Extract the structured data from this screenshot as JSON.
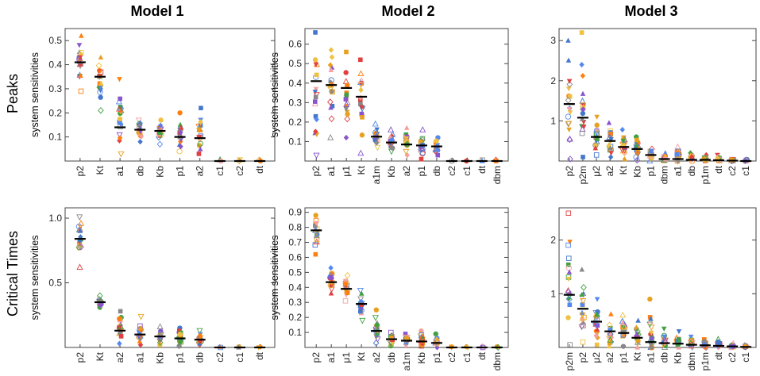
{
  "figure": {
    "column_titles": [
      "Model 1",
      "Model 2",
      "Model 3"
    ],
    "row_labels": [
      "Peaks",
      "Critical Times"
    ],
    "y_axis_label": "system sensitivities"
  },
  "chart_data": [
    {
      "type": "scatter",
      "id": "peaks-model-1",
      "title": "Model 1",
      "row": "Peaks",
      "ylabel": "system sensitivities",
      "ylim": [
        0,
        0.55
      ],
      "yticks": [
        0.1,
        0.2,
        0.3,
        0.4,
        0.5
      ],
      "yticklabels": [
        "0.1",
        "0.2",
        "0.3",
        "0.4",
        "0.5"
      ],
      "categories": [
        "p2",
        "Kt",
        "a1",
        "db",
        "Kb",
        "p1",
        "a2",
        "c1",
        "c2",
        "dt"
      ],
      "medians": [
        0.41,
        0.35,
        0.14,
        0.13,
        0.125,
        0.1,
        0.095,
        0.0,
        0.0,
        0.0
      ],
      "ranges": [
        [
          0.29,
          0.52
        ],
        [
          0.21,
          0.43
        ],
        [
          0.03,
          0.34
        ],
        [
          0.08,
          0.17
        ],
        [
          0.07,
          0.17
        ],
        [
          0.04,
          0.2
        ],
        [
          0.03,
          0.22
        ],
        [
          0.0,
          0.005
        ],
        [
          0.0,
          0.005
        ],
        [
          0.0,
          0.005
        ]
      ]
    },
    {
      "type": "scatter",
      "id": "peaks-model-2",
      "title": "Model 2",
      "row": "Peaks",
      "ylabel": "system sensitivities",
      "ylim": [
        0,
        0.68
      ],
      "yticks": [
        0.1,
        0.2,
        0.3,
        0.4,
        0.5,
        0.6
      ],
      "yticklabels": [
        "0.1",
        "0.2",
        "0.3",
        "0.4",
        "0.5",
        "0.6"
      ],
      "categories": [
        "p2",
        "a1",
        "μ1",
        "Kt",
        "a1m",
        "Kb",
        "a2",
        "p1",
        "db",
        "c2",
        "c1",
        "dt",
        "dbm"
      ],
      "medians": [
        0.41,
        0.39,
        0.375,
        0.33,
        0.125,
        0.095,
        0.085,
        0.08,
        0.075,
        0.0,
        0.0,
        0.0,
        0.0
      ],
      "ranges": [
        [
          0.03,
          0.66
        ],
        [
          0.12,
          0.57
        ],
        [
          0.12,
          0.56
        ],
        [
          0.04,
          0.52
        ],
        [
          0.07,
          0.19
        ],
        [
          0.05,
          0.16
        ],
        [
          0.03,
          0.17
        ],
        [
          0.01,
          0.16
        ],
        [
          0.03,
          0.12
        ],
        [
          0.0,
          0.005
        ],
        [
          0.0,
          0.005
        ],
        [
          0.0,
          0.005
        ],
        [
          0.0,
          0.005
        ]
      ]
    },
    {
      "type": "scatter",
      "id": "peaks-model-3",
      "title": "Model 3",
      "row": "Peaks",
      "ylabel": "",
      "ylim": [
        0,
        3.3
      ],
      "yticks": [
        1,
        2,
        3
      ],
      "yticklabels": [
        "1",
        "2",
        "3"
      ],
      "categories": [
        "p2",
        "p2m",
        "μ2",
        "a2",
        "Kt",
        "Kb",
        "p1",
        "dbm",
        "a1",
        "db",
        "p1m",
        "dt",
        "c2",
        "c1"
      ],
      "medians": [
        1.42,
        1.08,
        0.6,
        0.5,
        0.35,
        0.3,
        0.15,
        0.05,
        0.05,
        0.03,
        0.03,
        0.02,
        0.01,
        0.0
      ],
      "ranges": [
        [
          0.05,
          3.0
        ],
        [
          0.1,
          3.2
        ],
        [
          0.15,
          1.1
        ],
        [
          0.1,
          0.95
        ],
        [
          0.05,
          0.78
        ],
        [
          0.02,
          0.6
        ],
        [
          0.0,
          0.3
        ],
        [
          0.0,
          0.2
        ],
        [
          0.0,
          0.35
        ],
        [
          0.0,
          0.2
        ],
        [
          0.0,
          0.15
        ],
        [
          0.0,
          0.15
        ],
        [
          0.0,
          0.05
        ],
        [
          0.0,
          0.04
        ]
      ]
    },
    {
      "type": "scatter",
      "id": "critical-times-model-1",
      "title": "Model 1",
      "row": "Critical Times",
      "ylabel": "system sensitivities",
      "ylim": [
        0,
        1.08
      ],
      "yticks": [
        0.5,
        1.0
      ],
      "yticklabels": [
        "0.5",
        "1.0"
      ],
      "categories": [
        "p2",
        "Kt",
        "a2",
        "a1",
        "Kb",
        "p1",
        "db",
        "c2",
        "c1",
        "dt"
      ],
      "medians": [
        0.84,
        0.35,
        0.13,
        0.1,
        0.085,
        0.07,
        0.06,
        0.0,
        0.0,
        0.0
      ],
      "ranges": [
        [
          0.62,
          1.01
        ],
        [
          0.31,
          0.4
        ],
        [
          0.03,
          0.28
        ],
        [
          0.02,
          0.24
        ],
        [
          0.02,
          0.16
        ],
        [
          0.01,
          0.15
        ],
        [
          0.02,
          0.13
        ],
        [
          0.0,
          0.005
        ],
        [
          0.0,
          0.005
        ],
        [
          0.0,
          0.005
        ]
      ]
    },
    {
      "type": "scatter",
      "id": "critical-times-model-2",
      "title": "Model 2",
      "row": "Critical Times",
      "ylabel": "system sensitivities",
      "ylim": [
        0,
        0.93
      ],
      "yticks": [
        0.1,
        0.2,
        0.3,
        0.4,
        0.5,
        0.6,
        0.7,
        0.8,
        0.9
      ],
      "yticklabels": [
        "0.1",
        "0.2",
        "0.3",
        "0.4",
        "0.5",
        "0.6",
        "0.7",
        "0.8",
        "0.9"
      ],
      "categories": [
        "p2",
        "a1",
        "μ1",
        "Kt",
        "a2",
        "db",
        "a1m",
        "Kb",
        "p1",
        "c2",
        "c1",
        "dt",
        "dbm"
      ],
      "medians": [
        0.78,
        0.435,
        0.39,
        0.29,
        0.11,
        0.055,
        0.045,
        0.04,
        0.03,
        0.0,
        0.0,
        0.0,
        0.0
      ],
      "ranges": [
        [
          0.62,
          0.88
        ],
        [
          0.36,
          0.53
        ],
        [
          0.31,
          0.48
        ],
        [
          0.18,
          0.38
        ],
        [
          0.03,
          0.25
        ],
        [
          0.01,
          0.1
        ],
        [
          0.01,
          0.09
        ],
        [
          0.01,
          0.11
        ],
        [
          0.0,
          0.09
        ],
        [
          0.0,
          0.005
        ],
        [
          0.0,
          0.005
        ],
        [
          0.0,
          0.005
        ],
        [
          0.0,
          0.005
        ]
      ]
    },
    {
      "type": "scatter",
      "id": "critical-times-model-3",
      "title": "Model 3",
      "row": "Critical Times",
      "ylabel": "",
      "ylim": [
        0,
        2.6
      ],
      "yticks": [
        1,
        2
      ],
      "yticklabels": [
        "1",
        "2"
      ],
      "categories": [
        "p2m",
        "p2",
        "μ2",
        "a2",
        "p1",
        "Kt",
        "a1",
        "db",
        "Kb",
        "dbm",
        "p1m",
        "dt",
        "c2",
        "c1"
      ],
      "medians": [
        0.98,
        0.72,
        0.48,
        0.3,
        0.27,
        0.18,
        0.1,
        0.08,
        0.07,
        0.05,
        0.04,
        0.03,
        0.02,
        0.01
      ],
      "ranges": [
        [
          0.05,
          2.5
        ],
        [
          0.1,
          1.45
        ],
        [
          0.05,
          0.9
        ],
        [
          0.02,
          0.62
        ],
        [
          0.02,
          0.6
        ],
        [
          0.0,
          0.5
        ],
        [
          0.0,
          0.9
        ],
        [
          0.0,
          0.35
        ],
        [
          0.0,
          0.3
        ],
        [
          0.0,
          0.2
        ],
        [
          0.0,
          0.15
        ],
        [
          0.0,
          0.15
        ],
        [
          0.0,
          0.07
        ],
        [
          0.0,
          0.05
        ]
      ]
    }
  ],
  "colors": {
    "median": "#000000",
    "frame": "#444444",
    "markers": [
      "#e8a020",
      "#4477cc",
      "#e04040",
      "#40a040",
      "#8855cc",
      "#f0c040",
      "#ff7f0e",
      "#5588ee",
      "#f5a0a0",
      "#888888"
    ]
  }
}
